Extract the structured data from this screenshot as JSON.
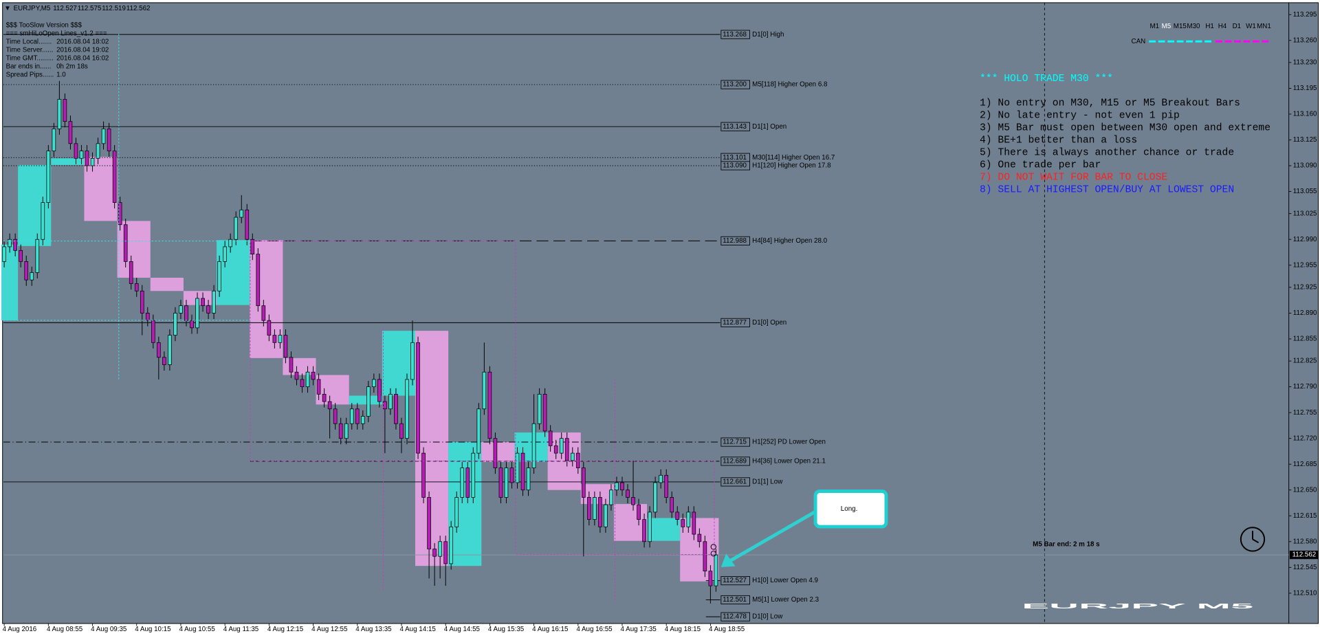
{
  "header": {
    "symbol": "EURJPY,M5",
    "quote": [
      112.527,
      112.575,
      112.519,
      112.562
    ]
  },
  "info": [
    "$$$ TooSlow Version $$$",
    "=== smHiLoOpen Lines_v1.2 ===",
    {
      "label": "Time Local.......",
      "value": "2016.08.04 18:02"
    },
    {
      "label": "Time Server......",
      "value": "2016.08.04 19:02"
    },
    {
      "label": "Time GMT.........",
      "value": "2016.08.04 16:02"
    },
    {
      "label": "Bar ends in......",
      "value": "0h 2m 18s"
    },
    {
      "label": "Spread Pips......",
      "value": "1.0"
    }
  ],
  "timeframes": [
    "M1",
    "M5",
    "M15",
    "M30",
    "H1",
    "H4",
    "D1",
    "W1",
    "MN1"
  ],
  "currency_label": "CAN",
  "notes": {
    "title": "*** HOLO TRADE M30 ***",
    "title_color": "#00ffff",
    "lines": [
      {
        "text": "1) No entry on M30, M15 or M5 Breakout Bars",
        "color": "#000000"
      },
      {
        "text": "2) No late entry - not even 1 pip",
        "color": "#000000"
      },
      {
        "text": "3) M5 Bar must open between M30 open and extreme",
        "color": "#000000"
      },
      {
        "text": "4) BE+1 better than a loss",
        "color": "#000000"
      },
      {
        "text": "5) There is always another chance or trade",
        "color": "#000000"
      },
      {
        "text": "6) One trade per bar",
        "color": "#000000"
      },
      {
        "text": "7) DO NOT WAIT FOR BAR TO CLOSE",
        "color": "#ff2020"
      },
      {
        "text": "8) SELL AT HIGHEST OPEN/BUY AT LOWEST OPEN",
        "color": "#1a1aff"
      }
    ]
  },
  "bar_end": "M5 Bar end: 2 m 18 s",
  "watermark": "EURJPY M5",
  "callout": "Long.",
  "chart_data": {
    "type": "candlestick",
    "up_color": "#40e0d0",
    "down_color": "#b41eb4",
    "box_up_color": "#40d8d0",
    "box_down_color": "#dda0dd",
    "ylim": [
      112.47,
      113.31
    ],
    "yticks": [
      113.295,
      {
        "value": 113.26,
        "label": "113.260"
      },
      {
        "value": 113.23,
        "label": "113.230"
      },
      113.195,
      {
        "value": 113.16,
        "label": "113.160"
      },
      113.125,
      {
        "value": 113.09,
        "label": "113.090"
      },
      113.055,
      113.025,
      {
        "value": 112.99,
        "label": "112.990"
      },
      112.955,
      112.925,
      {
        "value": 112.89,
        "label": "112.890"
      },
      112.855,
      112.825,
      {
        "value": 112.79,
        "label": "112.790"
      },
      112.755,
      {
        "value": 112.72,
        "label": "112.720"
      },
      112.685,
      {
        "value": 112.65,
        "label": "112.650"
      },
      112.615,
      {
        "value": 112.58,
        "label": "112.580"
      },
      112.545,
      {
        "value": 112.51,
        "label": "112.510"
      }
    ],
    "current": 112.562,
    "categories": [
      "4 Aug 2016",
      null,
      null,
      null,
      null,
      null,
      null,
      null,
      "4 Aug 08:55",
      null,
      null,
      null,
      null,
      null,
      null,
      null,
      "4 Aug 09:35",
      null,
      null,
      null,
      null,
      null,
      null,
      null,
      "4 Aug 10:15",
      null,
      null,
      null,
      null,
      null,
      null,
      null,
      "4 Aug 10:55",
      null,
      null,
      null,
      null,
      null,
      null,
      null,
      "4 Aug 11:35",
      null,
      null,
      null,
      null,
      null,
      null,
      null,
      "4 Aug 12:15",
      null,
      null,
      null,
      null,
      null,
      null,
      null,
      "4 Aug 12:55",
      null,
      null,
      null,
      null,
      null,
      null,
      null,
      "4 Aug 13:35",
      null,
      null,
      null,
      null,
      null,
      null,
      null,
      "4 Aug 14:15",
      null,
      null,
      null,
      null,
      null,
      null,
      null,
      "4 Aug 14:55",
      null,
      null,
      null,
      null,
      null,
      null,
      null,
      "4 Aug 15:35",
      null,
      null,
      null,
      null,
      null,
      null,
      null,
      "4 Aug 16:15",
      null,
      null,
      null,
      null,
      null,
      null,
      null,
      "4 Aug 16:55",
      null,
      null,
      null,
      null,
      null,
      null,
      null,
      "4 Aug 17:35",
      null,
      null,
      null,
      null,
      null,
      null,
      null,
      "4 Aug 18:15",
      null,
      null,
      null,
      null,
      null,
      null,
      null,
      "4 Aug 18:55",
      null
    ],
    "open": [
      112.96,
      112.98,
      112.99,
      112.975,
      112.96,
      112.935,
      112.945,
      112.99,
      113.04,
      113.11,
      113.14,
      113.18,
      113.15,
      113.12,
      113.1,
      113.11,
      113.09,
      113.1,
      113.12,
      113.14,
      113.11,
      113.04,
      113.01,
      112.96,
      112.93,
      112.92,
      112.89,
      112.88,
      112.85,
      112.83,
      112.82,
      112.86,
      112.89,
      112.9,
      112.88,
      112.87,
      112.91,
      112.9,
      112.89,
      112.92,
      112.96,
      112.98,
      112.99,
      113.02,
      113.03,
      112.99,
      112.97,
      112.9,
      112.88,
      112.86,
      112.85,
      112.86,
      112.83,
      112.81,
      112.8,
      112.79,
      112.81,
      112.8,
      112.78,
      112.77,
      112.76,
      112.74,
      112.72,
      112.74,
      112.76,
      112.74,
      112.75,
      112.79,
      112.8,
      112.77,
      112.76,
      112.78,
      112.74,
      112.72,
      112.8,
      112.85,
      112.7,
      112.64,
      112.57,
      112.56,
      112.58,
      112.55,
      112.6,
      112.64,
      112.68,
      112.64,
      112.7,
      112.76,
      112.81,
      112.72,
      112.68,
      112.64,
      112.68,
      112.66,
      112.7,
      112.65,
      112.68,
      112.74,
      112.78,
      112.73,
      112.71,
      112.7,
      112.72,
      112.69,
      112.7,
      112.68,
      112.64,
      112.61,
      112.64,
      112.6,
      112.63,
      112.65,
      112.66,
      112.65,
      112.64,
      112.63,
      112.61,
      112.58,
      112.62,
      112.66,
      112.67,
      112.64,
      112.62,
      112.61,
      112.6,
      112.62,
      112.59,
      112.58,
      112.54,
      112.52
    ],
    "high": [
      112.988,
      112.998,
      112.998,
      112.983,
      112.968,
      112.953,
      112.998,
      113.048,
      113.118,
      113.148,
      113.205,
      113.188,
      113.158,
      113.128,
      113.118,
      113.118,
      113.108,
      113.128,
      113.15,
      113.148,
      113.118,
      113.048,
      113.018,
      112.968,
      112.938,
      112.928,
      112.898,
      112.888,
      112.858,
      112.838,
      112.868,
      112.898,
      112.908,
      112.908,
      112.888,
      112.918,
      112.918,
      112.908,
      112.928,
      112.968,
      112.988,
      112.998,
      113.028,
      113.05,
      113.038,
      112.998,
      112.978,
      112.908,
      112.888,
      112.868,
      112.868,
      112.868,
      112.838,
      112.818,
      112.808,
      112.818,
      112.818,
      112.808,
      112.788,
      112.778,
      112.768,
      112.748,
      112.748,
      112.768,
      112.768,
      112.758,
      112.798,
      112.808,
      112.808,
      112.778,
      112.788,
      112.788,
      112.748,
      112.808,
      112.88,
      112.858,
      112.708,
      112.648,
      112.578,
      112.588,
      112.588,
      112.608,
      112.648,
      112.688,
      112.688,
      112.708,
      112.768,
      112.85,
      112.818,
      112.728,
      112.688,
      112.688,
      112.688,
      112.708,
      112.708,
      112.688,
      112.78,
      112.788,
      112.788,
      112.738,
      112.718,
      112.728,
      112.728,
      112.708,
      112.708,
      112.688,
      112.648,
      112.648,
      112.648,
      112.638,
      112.658,
      112.668,
      112.668,
      112.658,
      112.69,
      112.638,
      112.618,
      112.628,
      112.668,
      112.678,
      112.678,
      112.648,
      112.628,
      112.618,
      112.628,
      112.628,
      112.598,
      112.588,
      112.548,
      112.57
    ],
    "low": [
      112.952,
      112.972,
      112.967,
      112.952,
      112.927,
      112.927,
      112.937,
      112.982,
      113.032,
      113.102,
      113.132,
      113.142,
      113.112,
      113.092,
      113.092,
      113.082,
      113.082,
      113.092,
      113.112,
      113.102,
      113.032,
      113.002,
      112.952,
      112.922,
      112.912,
      112.86,
      112.872,
      112.842,
      112.8,
      112.812,
      112.812,
      112.852,
      112.882,
      112.872,
      112.862,
      112.862,
      112.892,
      112.882,
      112.882,
      112.912,
      112.952,
      112.972,
      112.982,
      113.012,
      112.982,
      112.962,
      112.892,
      112.872,
      112.852,
      112.842,
      112.842,
      112.822,
      112.802,
      112.792,
      112.782,
      112.782,
      112.792,
      112.772,
      112.762,
      112.72,
      112.732,
      112.712,
      112.712,
      112.732,
      112.732,
      112.732,
      112.742,
      112.782,
      112.762,
      112.7,
      112.752,
      112.732,
      112.7,
      112.712,
      112.792,
      112.692,
      112.632,
      112.53,
      112.52,
      112.53,
      112.52,
      112.542,
      112.592,
      112.632,
      112.632,
      112.632,
      112.692,
      112.752,
      112.712,
      112.672,
      112.632,
      112.632,
      112.652,
      112.652,
      112.642,
      112.642,
      112.672,
      112.732,
      112.722,
      112.702,
      112.692,
      112.692,
      112.682,
      112.682,
      112.672,
      112.56,
      112.602,
      112.602,
      112.592,
      112.592,
      112.622,
      112.642,
      112.642,
      112.632,
      112.622,
      112.602,
      112.572,
      112.572,
      112.612,
      112.652,
      112.632,
      112.612,
      112.602,
      112.592,
      112.592,
      112.582,
      112.572,
      112.532,
      112.496,
      112.512
    ],
    "close": [
      112.98,
      112.99,
      112.975,
      112.96,
      112.935,
      112.945,
      112.99,
      113.04,
      113.11,
      113.14,
      113.18,
      113.15,
      113.12,
      113.1,
      113.11,
      113.09,
      113.1,
      113.12,
      113.14,
      113.11,
      113.04,
      113.01,
      112.96,
      112.93,
      112.92,
      112.89,
      112.88,
      112.85,
      112.83,
      112.82,
      112.86,
      112.89,
      112.9,
      112.88,
      112.87,
      112.91,
      112.9,
      112.89,
      112.92,
      112.96,
      112.98,
      112.99,
      113.02,
      113.03,
      112.99,
      112.97,
      112.9,
      112.88,
      112.86,
      112.85,
      112.86,
      112.83,
      112.81,
      112.8,
      112.79,
      112.81,
      112.8,
      112.78,
      112.77,
      112.76,
      112.74,
      112.72,
      112.74,
      112.76,
      112.74,
      112.75,
      112.79,
      112.8,
      112.77,
      112.76,
      112.78,
      112.74,
      112.72,
      112.8,
      112.85,
      112.7,
      112.64,
      112.57,
      112.56,
      112.58,
      112.55,
      112.6,
      112.64,
      112.68,
      112.64,
      112.7,
      112.76,
      112.81,
      112.72,
      112.68,
      112.64,
      112.68,
      112.66,
      112.7,
      112.65,
      112.68,
      112.74,
      112.78,
      112.73,
      112.71,
      112.7,
      112.72,
      112.69,
      112.7,
      112.68,
      112.64,
      112.61,
      112.64,
      112.6,
      112.63,
      112.65,
      112.66,
      112.65,
      112.64,
      112.63,
      112.61,
      112.58,
      112.62,
      112.66,
      112.67,
      112.64,
      112.62,
      112.61,
      112.6,
      112.62,
      112.59,
      112.58,
      112.54,
      112.52,
      112.562
    ],
    "m30": [
      {
        "start": 0,
        "open": 112.88,
        "close": 112.983
      },
      {
        "start": 3,
        "open": 112.981,
        "close": 113.091
      },
      {
        "start": 9,
        "open": 113.091,
        "close": 113.1
      },
      {
        "start": 15,
        "open": 113.102,
        "close": 113.015
      },
      {
        "start": 21,
        "open": 113.015,
        "close": 112.938
      },
      {
        "start": 27,
        "open": 112.938,
        "close": 112.92
      },
      {
        "start": 33,
        "open": 112.92,
        "close": 112.901
      },
      {
        "start": 39,
        "open": 112.901,
        "close": 112.989
      },
      {
        "start": 45,
        "open": 112.989,
        "close": 112.829
      },
      {
        "start": 51,
        "open": 112.829,
        "close": 112.806
      },
      {
        "start": 57,
        "open": 112.806,
        "close": 112.766
      },
      {
        "start": 63,
        "open": 112.766,
        "close": 112.778
      },
      {
        "start": 69,
        "open": 112.778,
        "close": 112.866
      },
      {
        "start": 75,
        "open": 112.866,
        "close": 112.547
      },
      {
        "start": 81,
        "open": 112.547,
        "close": 112.715
      },
      {
        "start": 87,
        "open": 112.715,
        "close": 112.688
      },
      {
        "start": 93,
        "open": 112.688,
        "close": 112.728
      },
      {
        "start": 99,
        "open": 112.728,
        "close": 112.65
      },
      {
        "start": 105,
        "open": 112.658,
        "close": 112.631
      },
      {
        "start": 111,
        "open": 112.631,
        "close": 112.581
      },
      {
        "start": 117,
        "open": 112.581,
        "close": 112.612
      },
      {
        "start": 123,
        "open": 112.612,
        "close": 112.526
      }
    ],
    "levels": [
      {
        "value": 113.268,
        "text": "D1[0] High",
        "dash": "solid"
      },
      {
        "value": 113.2,
        "label": "113.200",
        "text": "M5[118] Higher Open 6.8",
        "dash": "dot"
      },
      {
        "value": 113.143,
        "text": "D1[1] Open",
        "dash": "solid"
      },
      {
        "value": 113.101,
        "text": "M30[114] Higher Open 16.7",
        "dash": "dot"
      },
      {
        "value": 113.09,
        "label": "113.090",
        "text": "H1[120] Higher Open 17.8",
        "dash": "dot"
      },
      {
        "value": 112.988,
        "text": "H4[84] Higher Open 28.0",
        "dash": "longdash"
      },
      {
        "value": 112.877,
        "text": "D1[0] Open",
        "dash": "solid"
      },
      {
        "value": 112.715,
        "text": "H1[252] PD Lower Open",
        "dash": "dashdot"
      },
      {
        "value": 112.689,
        "text": "H4[36] Lower Open 21.1",
        "dash": "dash"
      },
      {
        "value": 112.661,
        "text": "D1[1] Low",
        "dash": "solid"
      },
      {
        "value": 112.527,
        "text": "H1[0] Lower Open 4.9",
        "dash": "short"
      },
      {
        "value": 112.501,
        "text": "M5[1] Lower Open 2.3",
        "dash": "short"
      },
      {
        "value": 112.478,
        "text": "D1[0] Low",
        "dash": "short"
      }
    ]
  }
}
